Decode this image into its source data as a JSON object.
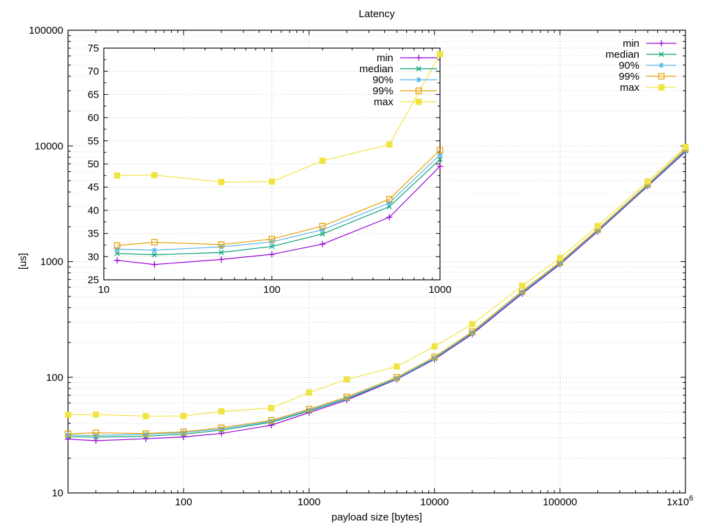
{
  "chart_data": {
    "type": "line",
    "title": "Latency",
    "xlabel": "payload size [bytes]",
    "ylabel": "[us]",
    "legend_position": "top-right",
    "grid": true,
    "colors": {
      "min": "#9400d3",
      "median": "#009e73",
      "p90": "#56b4e9",
      "p99": "#e69f00",
      "max": "#f0e442",
      "grid_major": "#b9b9b9",
      "grid_minor": "#cccccc",
      "frame": "#000000"
    },
    "x": [
      12,
      20,
      50,
      100,
      200,
      500,
      1000,
      2000,
      5000,
      10000,
      20000,
      50000,
      100000,
      200000,
      500000,
      1000000
    ],
    "series": [
      {
        "name": "min",
        "color": "#9400d3",
        "marker": "plus",
        "values": [
          29.2,
          28.3,
          29.4,
          30.5,
          32.7,
          38.5,
          49.5,
          63.5,
          96,
          143,
          236,
          528,
          945,
          1820,
          4480,
          8900
        ]
      },
      {
        "name": "median",
        "color": "#009e73",
        "marker": "cross",
        "values": [
          30.7,
          30.4,
          30.9,
          32.2,
          34.9,
          40.8,
          51.0,
          65.0,
          97,
          145,
          240,
          538,
          960,
          1850,
          4540,
          9050
        ]
      },
      {
        "name": "90%",
        "color": "#56b4e9",
        "marker": "asterisk",
        "values": [
          31.6,
          31.4,
          32.1,
          33.2,
          35.8,
          41.6,
          52.0,
          66.0,
          98,
          147,
          243,
          545,
          972,
          1870,
          4600,
          9200
        ]
      },
      {
        "name": "99%",
        "color": "#e69f00",
        "marker": "open-square",
        "values": [
          32.4,
          33.1,
          32.6,
          33.8,
          36.6,
          42.4,
          53.0,
          67.5,
          100,
          150,
          248,
          558,
          990,
          1905,
          4680,
          9450
        ]
      },
      {
        "name": "max",
        "color": "#f0e442",
        "marker": "filled-square",
        "values": [
          47.5,
          47.6,
          46.1,
          46.2,
          50.7,
          54.2,
          73.7,
          96,
          124,
          185,
          288,
          618,
          1075,
          2030,
          4930,
          9800
        ]
      }
    ],
    "main_axes": {
      "xscale": "log",
      "yscale": "log",
      "xlim": [
        12,
        1000000
      ],
      "ylim": [
        10,
        100000
      ],
      "xtick_values": [
        100,
        1000,
        10000,
        100000,
        1000000
      ],
      "xtick_labels": [
        "100",
        "1000",
        "10000",
        "100000",
        "1x10^6"
      ],
      "ytick_values": [
        10,
        100,
        1000,
        10000,
        100000
      ],
      "ytick_labels": [
        "10",
        "100",
        "1000",
        "10000",
        "100000"
      ]
    },
    "inset_axes": {
      "xscale": "log",
      "yscale": "linear",
      "xlim": [
        10,
        1000
      ],
      "ylim": [
        25,
        75
      ],
      "xtick_values": [
        10,
        100,
        1000
      ],
      "xtick_labels": [
        "10",
        "100",
        "1000"
      ],
      "ytick_min": 25,
      "ytick_max": 75,
      "ytick_step": 5
    }
  }
}
